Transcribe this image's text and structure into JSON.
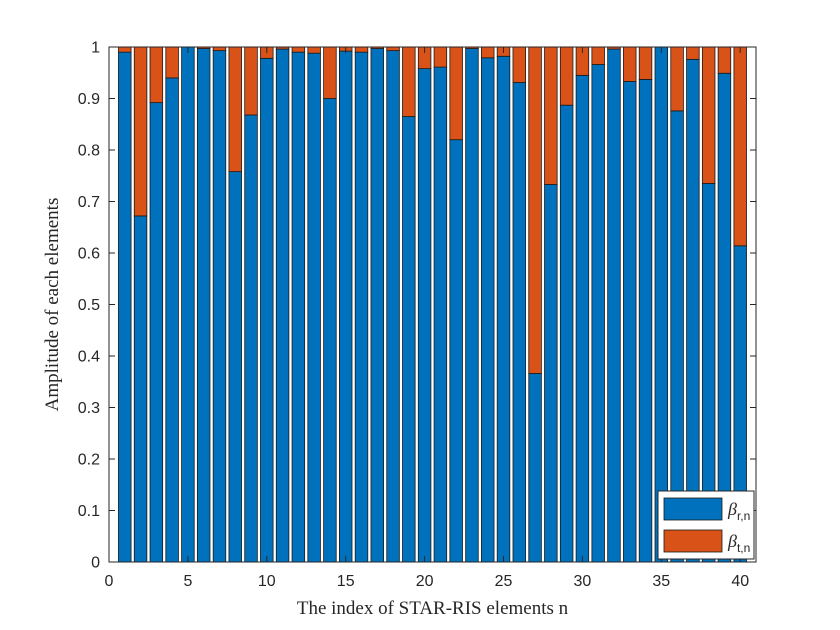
{
  "chart_data": {
    "type": "bar",
    "stacked": true,
    "title": "",
    "xlabel": "The index of STAR-RIS elements n",
    "ylabel": "Amplitude of each elements",
    "xlim": [
      0,
      41
    ],
    "ylim": [
      0,
      1
    ],
    "xticks": [
      0,
      5,
      10,
      15,
      20,
      25,
      30,
      35,
      40
    ],
    "yticks": [
      0,
      0.1,
      0.2,
      0.3,
      0.4,
      0.5,
      0.6,
      0.7,
      0.8,
      0.9,
      1
    ],
    "xtick_labels": [
      "0",
      "5",
      "10",
      "15",
      "20",
      "25",
      "30",
      "35",
      "40"
    ],
    "ytick_labels": [
      "0",
      "0.1",
      "0.2",
      "0.3",
      "0.4",
      "0.5",
      "0.6",
      "0.7",
      "0.8",
      "0.9",
      "1"
    ],
    "grid": false,
    "legend_position": "bottom-right",
    "categories": [
      1,
      2,
      3,
      4,
      5,
      6,
      7,
      8,
      9,
      10,
      11,
      12,
      13,
      14,
      15,
      16,
      17,
      18,
      19,
      20,
      21,
      22,
      23,
      24,
      25,
      26,
      27,
      28,
      29,
      30,
      31,
      32,
      33,
      34,
      35,
      36,
      37,
      38,
      39,
      40
    ],
    "series": [
      {
        "name_base": "β",
        "name_sub": "r,n",
        "color": "#0072BD",
        "values": [
          0.99,
          0.672,
          0.892,
          0.94,
          1.0,
          0.997,
          0.993,
          0.758,
          0.868,
          0.978,
          0.996,
          0.99,
          0.988,
          0.9,
          0.992,
          0.99,
          0.997,
          0.993,
          0.865,
          0.958,
          0.961,
          0.82,
          0.997,
          0.979,
          0.982,
          0.931,
          0.366,
          0.733,
          0.887,
          0.945,
          0.966,
          0.996,
          0.933,
          0.937,
          1.0,
          0.876,
          0.976,
          0.735,
          0.949,
          0.614
        ]
      },
      {
        "name_base": "β",
        "name_sub": "t,n",
        "color": "#D95319",
        "values": [
          0.01,
          0.328,
          0.108,
          0.06,
          0.0,
          0.003,
          0.007,
          0.242,
          0.132,
          0.022,
          0.004,
          0.01,
          0.012,
          0.1,
          0.008,
          0.01,
          0.003,
          0.007,
          0.135,
          0.042,
          0.039,
          0.18,
          0.003,
          0.021,
          0.018,
          0.069,
          0.634,
          0.267,
          0.113,
          0.055,
          0.034,
          0.004,
          0.067,
          0.063,
          0.0,
          0.124,
          0.024,
          0.265,
          0.051,
          0.386
        ]
      }
    ]
  }
}
